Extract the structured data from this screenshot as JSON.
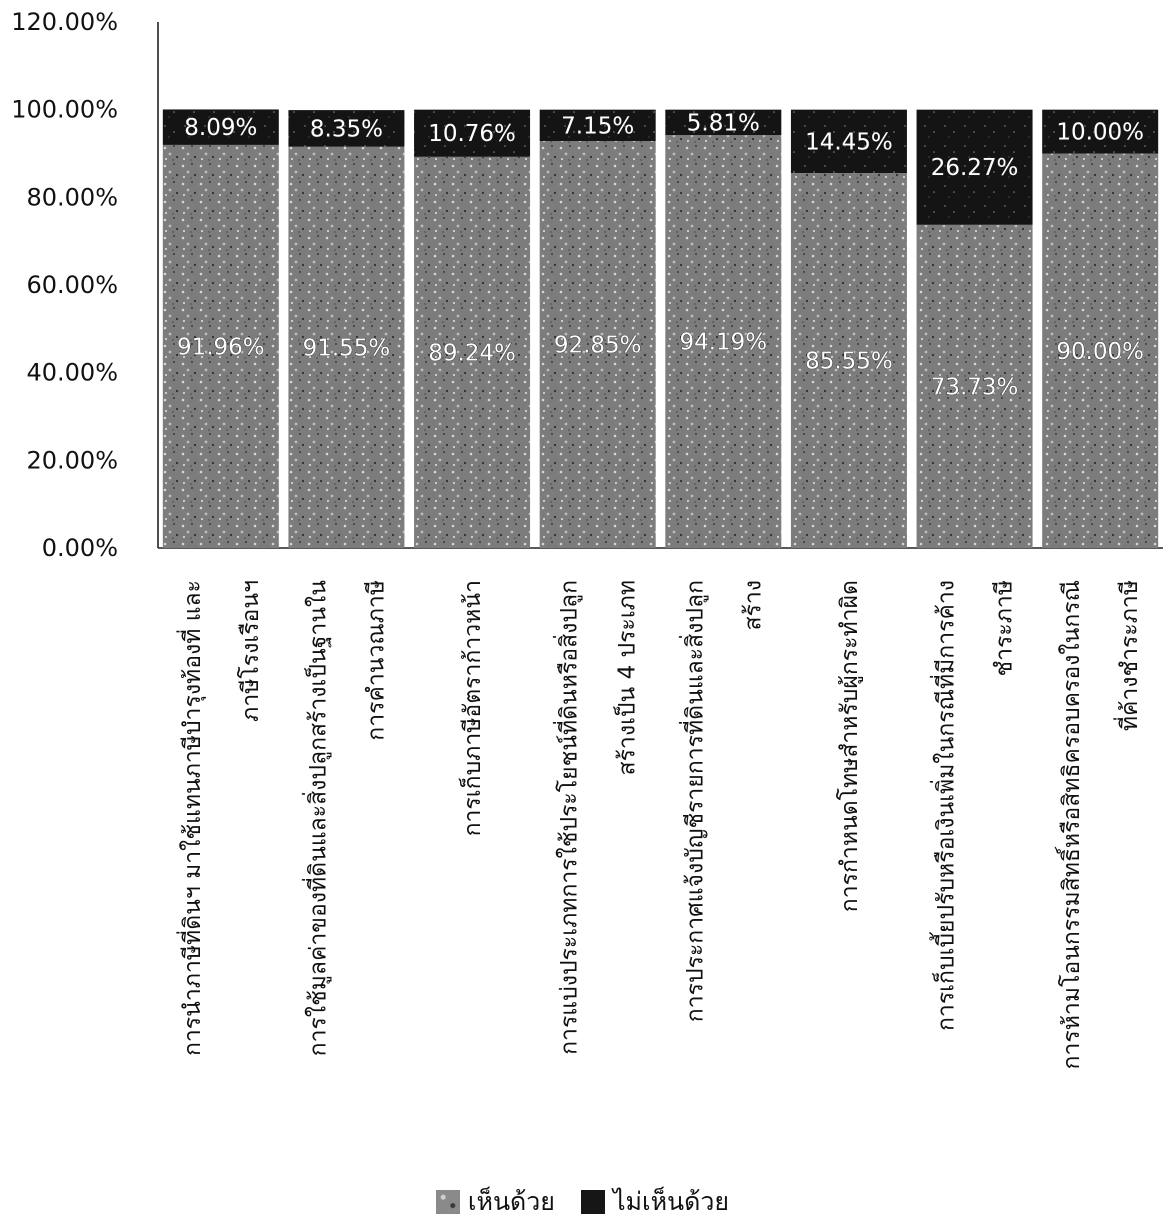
{
  "chart_data": {
    "type": "bar",
    "stacked": true,
    "title": "",
    "xlabel": "",
    "ylabel": "",
    "ylim": [
      0,
      120
    ],
    "y_tick_labels": [
      "0.00%",
      "20.00%",
      "40.00%",
      "60.00%",
      "80.00%",
      "100.00%",
      "120.00%"
    ],
    "y_tick_values": [
      0,
      20,
      40,
      60,
      80,
      100,
      120
    ],
    "grid": false,
    "legend_position": "bottom",
    "categories": [
      [
        "การนำภาษีที่ดินฯ มาใช้แทนภาษีบำรุงท้องที่ และ",
        "ภาษีโรงเรือนฯ"
      ],
      [
        "การใช้มูลค่าของที่ดินและสิ่งปลูกสร้างเป็นฐานใน",
        "การคำนวณภาษี"
      ],
      [
        "การเก็บภาษีอัตราก้าวหน้า"
      ],
      [
        "การแบ่งประเภทการใช้ประโยชน์ที่ดินหรือสิ่งปลูก",
        "สร้างเป็น 4 ประเภท"
      ],
      [
        "การประกาศแจ้งบัญชีรายการที่ดินและสิ่งปลูก",
        "สร้าง"
      ],
      [
        "การกำหนดโทษสำหรับผู้กระทำผิด"
      ],
      [
        "การเก็บเบี้ยปรับหรือเงินเพิ่มในกรณีที่มีการค้าง",
        "ชำระภาษี"
      ],
      [
        "การห้ามโอนกรรมสิทธิ์หรือสิทธิครอบครองในกรณี",
        "ที่ค้างชำระภาษี"
      ]
    ],
    "series": [
      {
        "name": "เห็นด้วย",
        "values": [
          91.96,
          91.55,
          89.24,
          92.85,
          94.19,
          85.55,
          73.73,
          90.0
        ],
        "labels": [
          "91.96%",
          "91.55%",
          "89.24%",
          "92.85%",
          "94.19%",
          "85.55%",
          "73.73%",
          "90.00%"
        ],
        "color": "#8a8a8a"
      },
      {
        "name": "ไม่เห็นด้วย",
        "values": [
          8.09,
          8.35,
          10.76,
          7.15,
          5.81,
          14.45,
          26.27,
          10.0
        ],
        "labels": [
          "8.09%",
          "8.35%",
          "10.76%",
          "7.15%",
          "5.81%",
          "14.45%",
          "26.27%",
          "10.00%"
        ],
        "color": "#161616"
      }
    ]
  }
}
